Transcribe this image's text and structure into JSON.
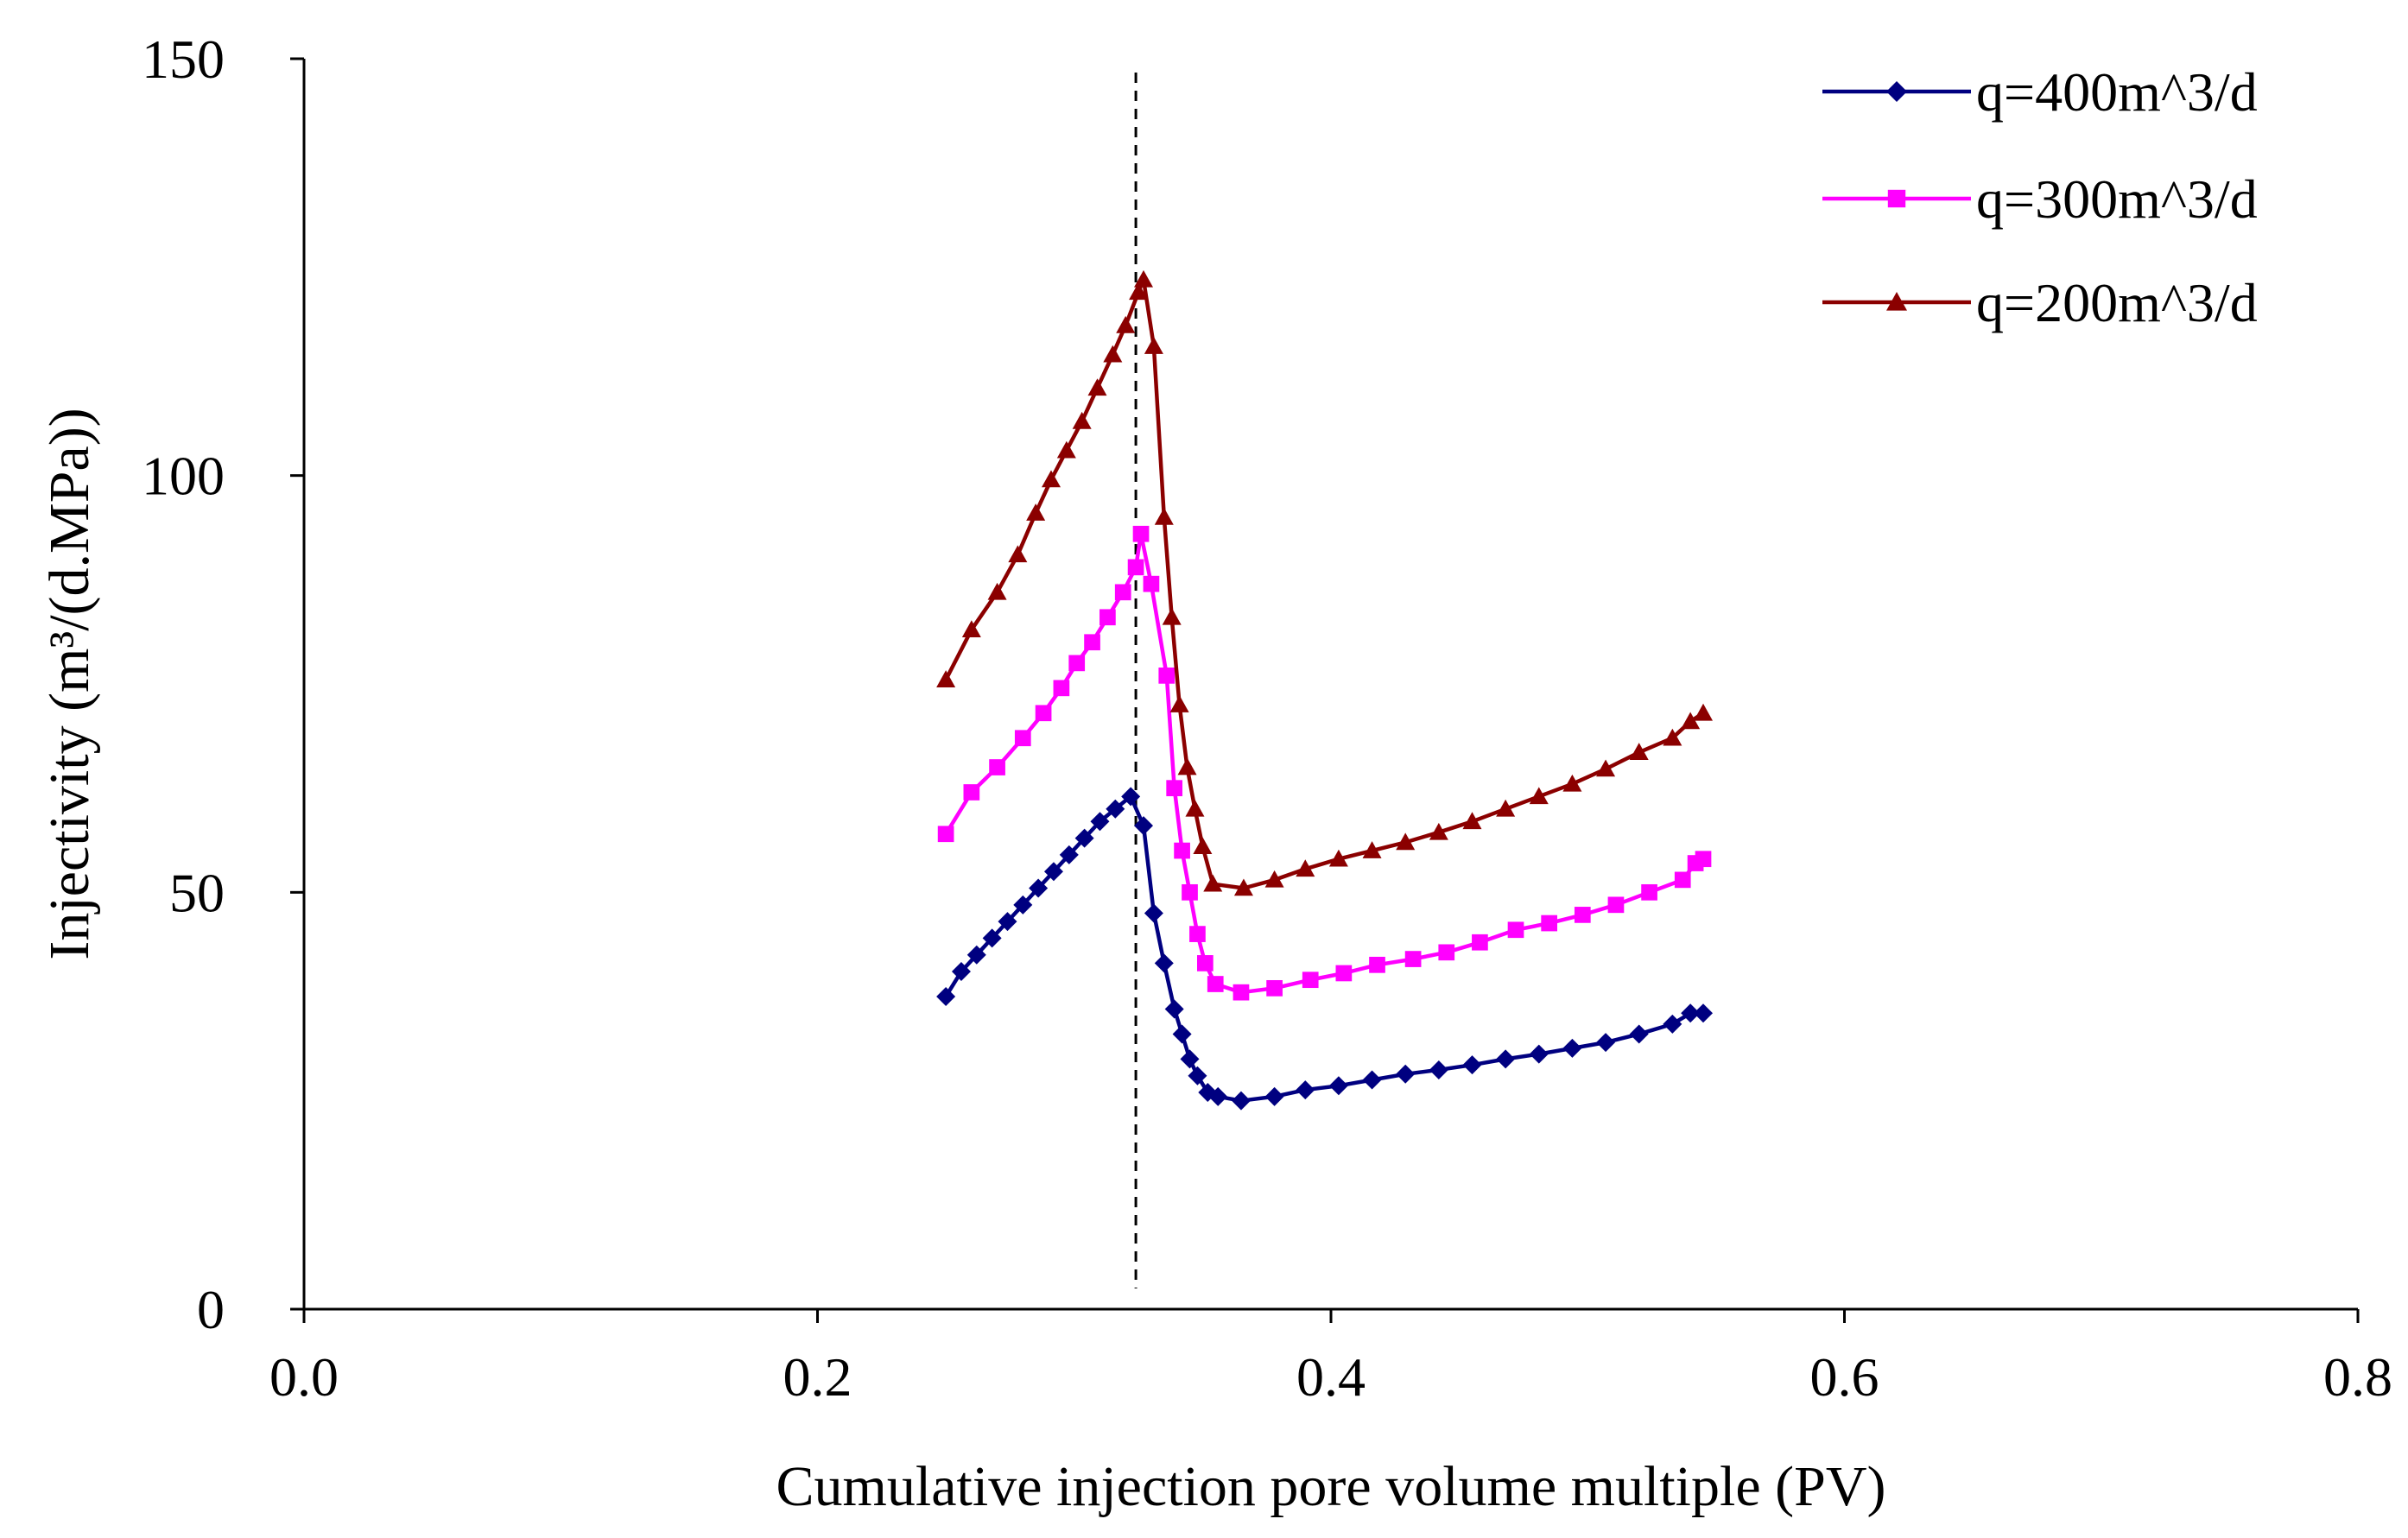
{
  "chart_data": {
    "type": "line",
    "title": "",
    "xlabel": "Cumulative injection pore volume multiple (PV)",
    "ylabel": "Injectivity (m³/(d.MPa))",
    "xlim": [
      0.0,
      0.8
    ],
    "ylim": [
      0,
      150
    ],
    "x_ticks": [
      "0.0",
      "0.2",
      "0.4",
      "0.6",
      "0.8"
    ],
    "y_ticks": [
      "0",
      "50",
      "100",
      "150"
    ],
    "grid": false,
    "legend_position": "top-right",
    "reference_line": {
      "x": 0.324,
      "style": "dashed",
      "color": "#000000"
    },
    "series": [
      {
        "name": "q=400m^3/d",
        "color": "#000080",
        "marker": "diamond",
        "points": [
          [
            0.25,
            37.5
          ],
          [
            0.256,
            40.5
          ],
          [
            0.262,
            42.5
          ],
          [
            0.268,
            44.5
          ],
          [
            0.274,
            46.5
          ],
          [
            0.28,
            48.5
          ],
          [
            0.286,
            50.5
          ],
          [
            0.292,
            52.5
          ],
          [
            0.298,
            54.5
          ],
          [
            0.304,
            56.5
          ],
          [
            0.31,
            58.5
          ],
          [
            0.316,
            60
          ],
          [
            0.322,
            61.5
          ],
          [
            0.327,
            58
          ],
          [
            0.331,
            47.5
          ],
          [
            0.335,
            41.5
          ],
          [
            0.339,
            36
          ],
          [
            0.342,
            33
          ],
          [
            0.345,
            30
          ],
          [
            0.348,
            28
          ],
          [
            0.352,
            26
          ],
          [
            0.356,
            25.5
          ],
          [
            0.365,
            25
          ],
          [
            0.378,
            25.5
          ],
          [
            0.39,
            26.3
          ],
          [
            0.403,
            26.8
          ],
          [
            0.416,
            27.5
          ],
          [
            0.429,
            28.2
          ],
          [
            0.442,
            28.7
          ],
          [
            0.455,
            29.3
          ],
          [
            0.468,
            30
          ],
          [
            0.481,
            30.6
          ],
          [
            0.494,
            31.3
          ],
          [
            0.507,
            32
          ],
          [
            0.52,
            33
          ],
          [
            0.533,
            34.2
          ],
          [
            0.54,
            35.5
          ],
          [
            0.545,
            35.5
          ]
        ]
      },
      {
        "name": "q=300m^3/d",
        "color": "#ff00ff",
        "marker": "square",
        "points": [
          [
            0.25,
            57
          ],
          [
            0.26,
            62
          ],
          [
            0.27,
            65
          ],
          [
            0.28,
            68.5
          ],
          [
            0.288,
            71.5
          ],
          [
            0.295,
            74.5
          ],
          [
            0.301,
            77.5
          ],
          [
            0.307,
            80
          ],
          [
            0.313,
            83
          ],
          [
            0.319,
            86
          ],
          [
            0.324,
            89
          ],
          [
            0.326,
            93
          ],
          [
            0.33,
            87
          ],
          [
            0.336,
            76
          ],
          [
            0.339,
            62.5
          ],
          [
            0.342,
            55
          ],
          [
            0.345,
            50
          ],
          [
            0.348,
            45
          ],
          [
            0.351,
            41.5
          ],
          [
            0.355,
            39
          ],
          [
            0.365,
            38
          ],
          [
            0.378,
            38.5
          ],
          [
            0.392,
            39.5
          ],
          [
            0.405,
            40.3
          ],
          [
            0.418,
            41.3
          ],
          [
            0.432,
            42
          ],
          [
            0.445,
            42.8
          ],
          [
            0.458,
            44
          ],
          [
            0.472,
            45.5
          ],
          [
            0.485,
            46.3
          ],
          [
            0.498,
            47.3
          ],
          [
            0.511,
            48.5
          ],
          [
            0.524,
            50
          ],
          [
            0.537,
            51.5
          ],
          [
            0.542,
            53.5
          ],
          [
            0.545,
            54
          ]
        ]
      },
      {
        "name": "q=200m^3/d",
        "color": "#8b0000",
        "marker": "triangle",
        "points": [
          [
            0.25,
            75.5
          ],
          [
            0.26,
            81.5
          ],
          [
            0.27,
            86
          ],
          [
            0.278,
            90.5
          ],
          [
            0.285,
            95.5
          ],
          [
            0.291,
            99.5
          ],
          [
            0.297,
            103
          ],
          [
            0.303,
            106.5
          ],
          [
            0.309,
            110.5
          ],
          [
            0.315,
            114.5
          ],
          [
            0.32,
            118
          ],
          [
            0.325,
            122
          ],
          [
            0.327,
            123.5
          ],
          [
            0.331,
            115.5
          ],
          [
            0.335,
            95
          ],
          [
            0.338,
            83
          ],
          [
            0.341,
            72.5
          ],
          [
            0.344,
            65
          ],
          [
            0.347,
            60
          ],
          [
            0.35,
            55.5
          ],
          [
            0.354,
            51
          ],
          [
            0.366,
            50.5
          ],
          [
            0.378,
            51.5
          ],
          [
            0.39,
            52.8
          ],
          [
            0.403,
            54
          ],
          [
            0.416,
            55
          ],
          [
            0.429,
            56
          ],
          [
            0.442,
            57.2
          ],
          [
            0.455,
            58.5
          ],
          [
            0.468,
            60
          ],
          [
            0.481,
            61.5
          ],
          [
            0.494,
            63
          ],
          [
            0.507,
            64.8
          ],
          [
            0.52,
            66.8
          ],
          [
            0.533,
            68.5
          ],
          [
            0.54,
            70.5
          ],
          [
            0.545,
            71.5
          ]
        ]
      }
    ]
  }
}
